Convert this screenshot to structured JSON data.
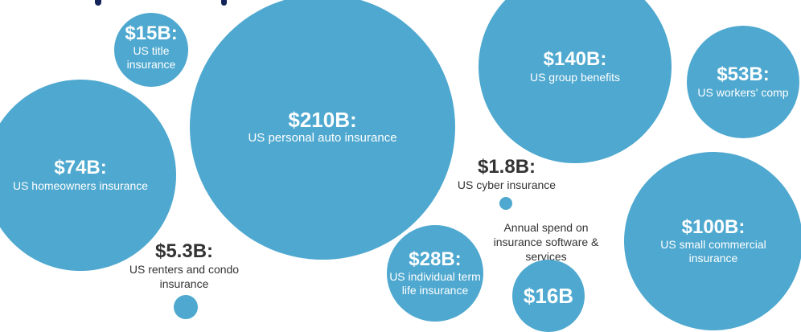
{
  "chart_data": {
    "type": "bubble",
    "title": "",
    "unit": "USD billions",
    "bubbles": [
      {
        "value": 15,
        "value_label": "$15B:",
        "label": "US title insurance",
        "label_lines": [
          "US title",
          "insurance"
        ],
        "label_position": "inside"
      },
      {
        "value": 210,
        "value_label": "$210B:",
        "label": "US personal auto insurance",
        "label_lines": [
          "US personal auto insurance"
        ],
        "label_position": "inside"
      },
      {
        "value": 140,
        "value_label": "$140B:",
        "label": "US group benefits",
        "label_lines": [
          "US group benefits"
        ],
        "label_position": "inside"
      },
      {
        "value": 53,
        "value_label": "$53B:",
        "label": "US workers' comp",
        "label_lines": [
          "US workers' comp"
        ],
        "label_position": "inside"
      },
      {
        "value": 74,
        "value_label": "$74B:",
        "label": "US homeowners insurance",
        "label_lines": [
          "US homeowners insurance"
        ],
        "label_position": "inside"
      },
      {
        "value": 100,
        "value_label": "$100B:",
        "label": "US small commercial insurance",
        "label_lines": [
          "US small commercial",
          "insurance"
        ],
        "label_position": "inside"
      },
      {
        "value": 28,
        "value_label": "$28B:",
        "label": "US individual term life insurance",
        "label_lines": [
          "US individual term",
          "life insurance"
        ],
        "label_position": "inside"
      },
      {
        "value": 16,
        "value_label": "$16B",
        "label": "Annual spend on insurance software & services",
        "label_lines": [
          "Annual spend on",
          "insurance software &",
          "services"
        ],
        "label_position": "above"
      },
      {
        "value": 5.3,
        "value_label": "$5.3B:",
        "label": "US renters and condo insurance",
        "label_lines": [
          "US renters and condo",
          "insurance"
        ],
        "label_position": "above"
      },
      {
        "value": 1.8,
        "value_label": "$1.8B:",
        "label": "US cyber insurance",
        "label_lines": [
          "US cyber insurance"
        ],
        "label_position": "above"
      }
    ],
    "colors": {
      "bubble": "#4ea8cf",
      "outside_text": "#333333"
    }
  }
}
